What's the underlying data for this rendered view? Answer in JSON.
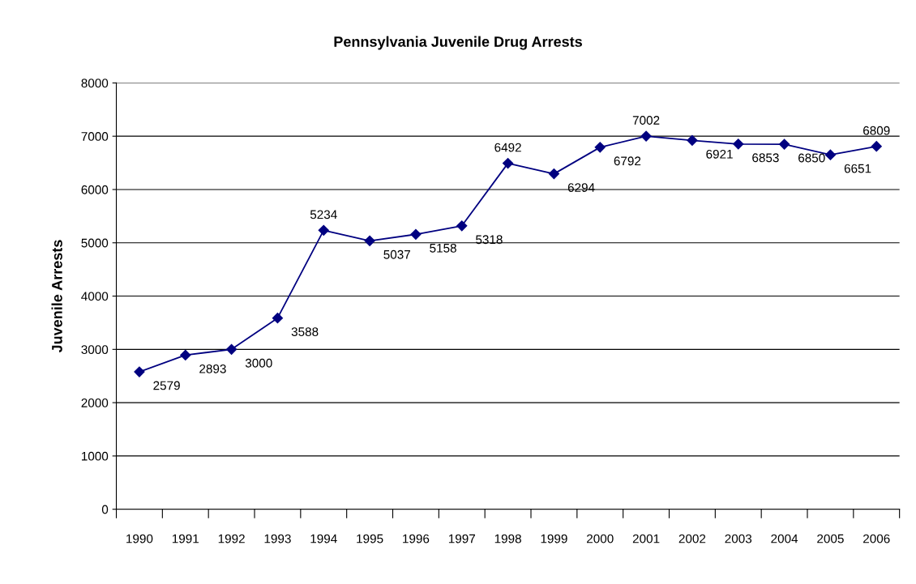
{
  "chart_data": {
    "type": "line",
    "title": "Pennsylvania Juvenile Drug Arrests",
    "ylabel": "Juvenile Arrests",
    "categories": [
      "1990",
      "1991",
      "1992",
      "1993",
      "1994",
      "1995",
      "1996",
      "1997",
      "1998",
      "1999",
      "2000",
      "2001",
      "2002",
      "2003",
      "2004",
      "2005",
      "2006"
    ],
    "series": [
      {
        "color": "#000080",
        "values": [
          2579,
          2893,
          3000,
          3588,
          5234,
          5037,
          5158,
          5318,
          6492,
          6294,
          6792,
          7002,
          6921,
          6853,
          6850,
          6651,
          6809
        ]
      }
    ],
    "ylim": [
      0,
      8000
    ],
    "yticks": [
      0,
      1000,
      2000,
      3000,
      4000,
      5000,
      6000,
      7000,
      8000
    ],
    "grid": "y",
    "marker": "diamond",
    "line_style": "solid",
    "data_labels": true,
    "legend": false
  }
}
